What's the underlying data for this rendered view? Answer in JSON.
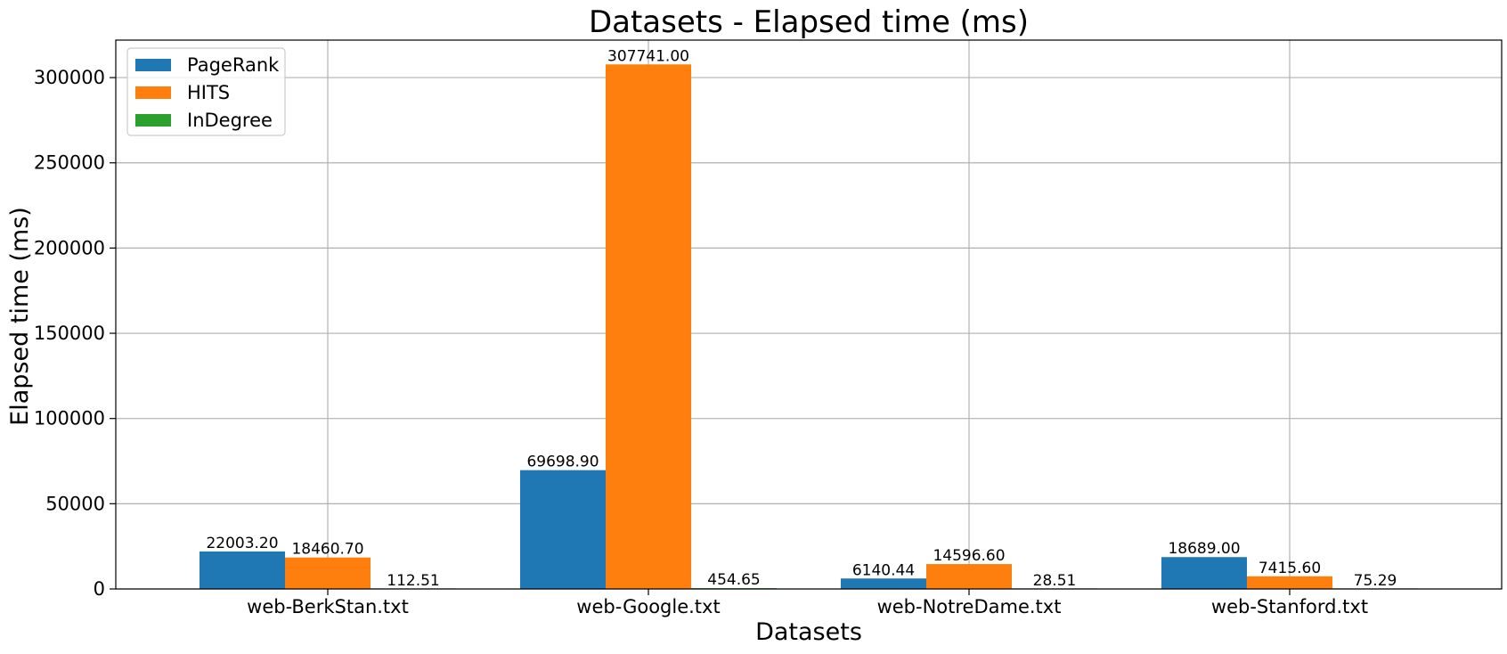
{
  "chart_data": {
    "type": "bar",
    "title": "Datasets - Elapsed time (ms)",
    "xlabel": "Datasets",
    "ylabel": "Elapsed time (ms)",
    "categories": [
      "web-BerkStan.txt",
      "web-Google.txt",
      "web-NotreDame.txt",
      "web-Stanford.txt"
    ],
    "series": [
      {
        "name": "PageRank",
        "color": "#1f77b4",
        "values": [
          22003.2,
          69698.9,
          6140.44,
          18689.0
        ],
        "labels": [
          "22003.20",
          "69698.90",
          "6140.44",
          "18689.00"
        ]
      },
      {
        "name": "HITS",
        "color": "#ff7f0e",
        "values": [
          18460.7,
          307741.0,
          14596.6,
          7415.6
        ],
        "labels": [
          "18460.70",
          "307741.00",
          "14596.60",
          "7415.60"
        ]
      },
      {
        "name": "InDegree",
        "color": "#2ca02c",
        "values": [
          112.51,
          454.65,
          28.51,
          75.29
        ],
        "labels": [
          "112.51",
          "454.65",
          "28.51",
          "75.29"
        ]
      }
    ],
    "ylim": [
      0,
      322000
    ],
    "yticks": [
      0,
      50000,
      100000,
      150000,
      200000,
      250000,
      300000
    ],
    "ytick_labels": [
      "0",
      "50000",
      "100000",
      "150000",
      "200000",
      "250000",
      "300000"
    ],
    "grid": true,
    "legend_position": "upper left"
  }
}
